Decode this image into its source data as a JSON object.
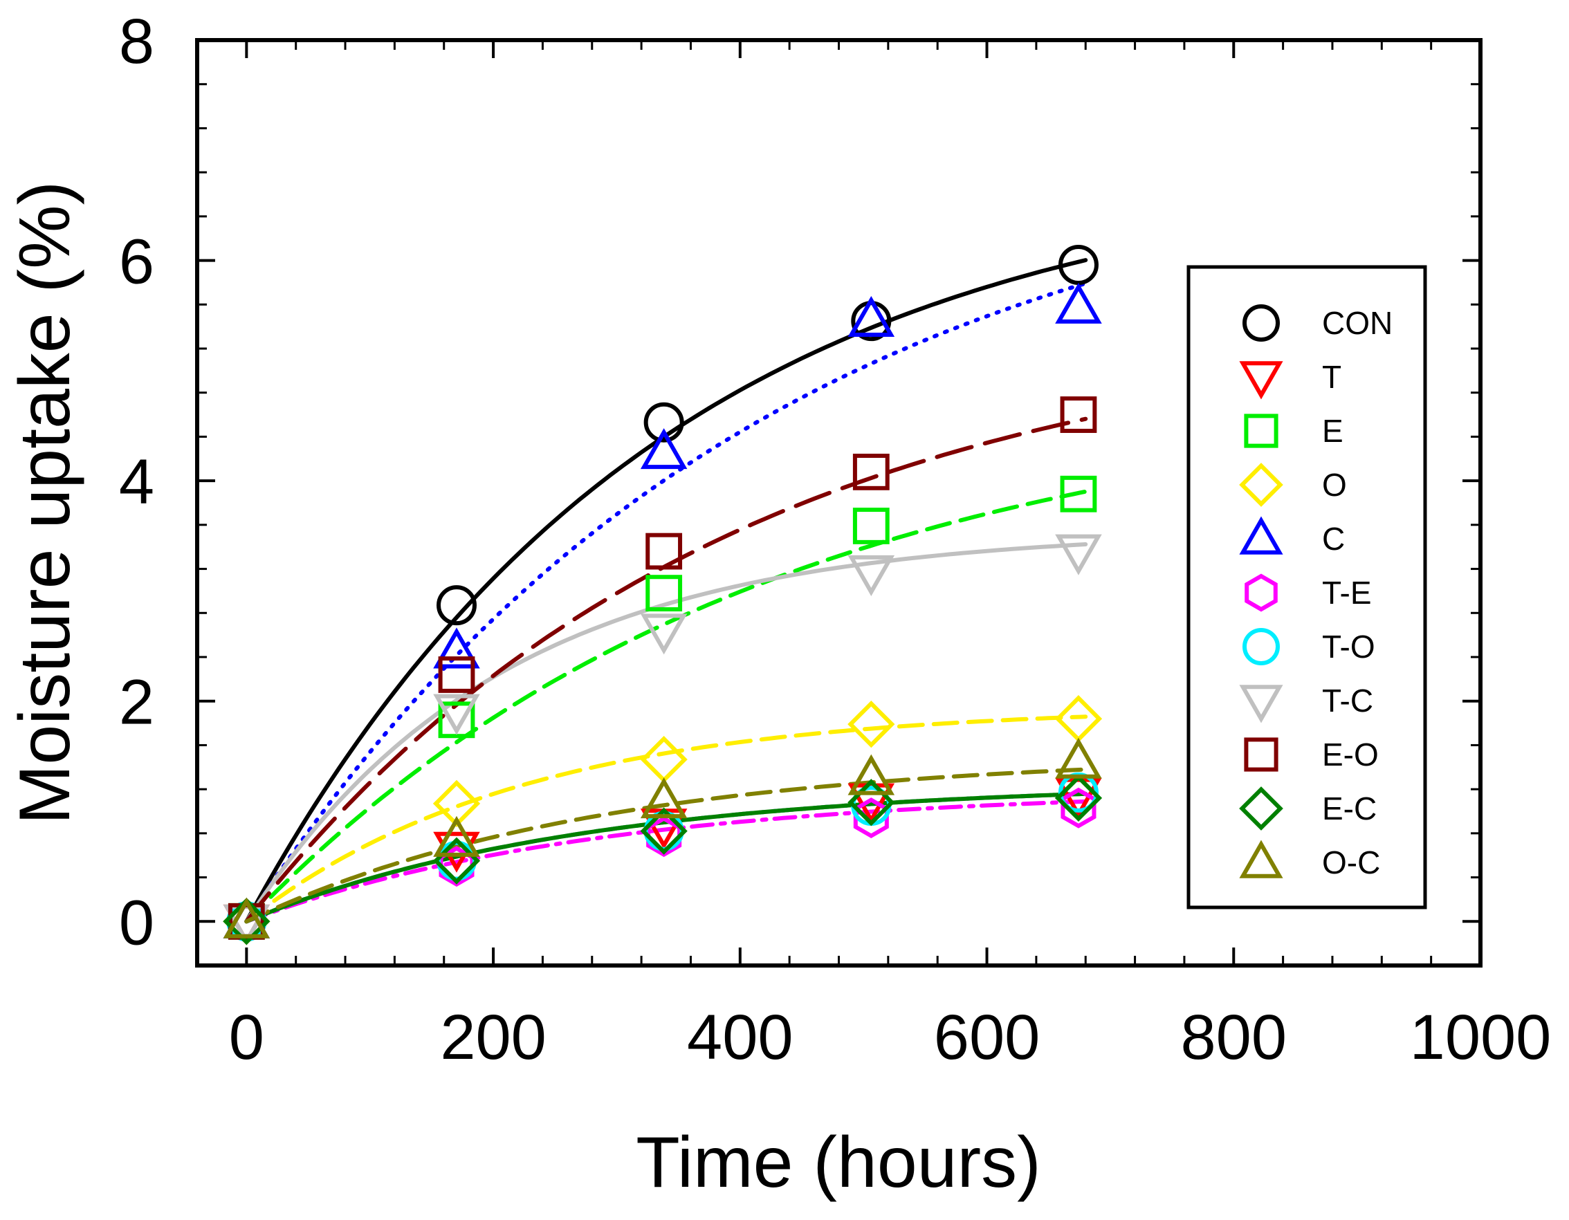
{
  "chart_data": {
    "type": "scatter",
    "title": "",
    "xlabel": "Time (hours)",
    "ylabel": "Moisture uptake (%)",
    "xlim": [
      -40,
      1000
    ],
    "ylim": [
      -0.4,
      8
    ],
    "xticks": [
      0,
      200,
      400,
      600,
      800,
      1000
    ],
    "yticks": [
      0,
      2,
      4,
      6,
      8
    ],
    "xtick_labels": [
      "0",
      "200",
      "400",
      "600",
      "800",
      "1000"
    ],
    "ytick_labels": [
      "0",
      "2",
      "4",
      "6",
      "8"
    ],
    "grid": false,
    "legend_position": "right",
    "series": [
      {
        "name": "CON",
        "marker": "circle",
        "color": "#000000",
        "line_style": "solid",
        "fit_final": 6.9,
        "fit_k": 0.003,
        "x": [
          0,
          168,
          336,
          504,
          672
        ],
        "y": [
          0,
          2.87,
          4.53,
          5.45,
          5.96
        ]
      },
      {
        "name": "T",
        "marker": "triangle-down",
        "color": "#ff0000",
        "line_style": "dashdot",
        "fit_final": 1.26,
        "fit_k": 0.0037,
        "x": [
          0,
          168,
          336,
          504,
          672
        ],
        "y": [
          0,
          0.66,
          0.87,
          1.1,
          1.15
        ]
      },
      {
        "name": "E",
        "marker": "square",
        "color": "#00ee00",
        "line_style": "dashed",
        "fit_final": 4.85,
        "fit_k": 0.0024,
        "x": [
          0,
          168,
          336,
          504,
          672
        ],
        "y": [
          0,
          1.83,
          2.98,
          3.59,
          3.88
        ]
      },
      {
        "name": "O",
        "marker": "diamond",
        "color": "#ffee00",
        "line_style": "dashed",
        "fit_final": 1.95,
        "fit_k": 0.0045,
        "x": [
          0,
          168,
          336,
          504,
          672
        ],
        "y": [
          0,
          1.07,
          1.47,
          1.79,
          1.84
        ]
      },
      {
        "name": "C",
        "marker": "triangle-up",
        "color": "#0000ff",
        "line_style": "dotted",
        "fit_final": 7.2,
        "fit_k": 0.0024,
        "x": [
          0,
          168,
          336,
          504,
          672
        ],
        "y": [
          0,
          2.45,
          4.26,
          5.46,
          5.58
        ]
      },
      {
        "name": "T-E",
        "marker": "hexagon",
        "color": "#ff00ff",
        "line_style": "dashdot",
        "fit_final": 1.2,
        "fit_k": 0.0035,
        "x": [
          0,
          168,
          336,
          504,
          672
        ],
        "y": [
          0,
          0.5,
          0.77,
          0.94,
          1.03
        ]
      },
      {
        "name": "T-O",
        "marker": "circle",
        "color": "#00eeff",
        "line_style": "dashdot",
        "fit_final": 1.26,
        "fit_k": 0.0037,
        "x": [
          0,
          168,
          336,
          504,
          672
        ],
        "y": [
          0,
          0.55,
          0.82,
          1.05,
          1.17
        ]
      },
      {
        "name": "T-C",
        "marker": "triangle-down",
        "color": "#c0c0c0",
        "line_style": "solid",
        "fit_final": 3.55,
        "fit_k": 0.0049,
        "x": [
          0,
          168,
          336,
          504,
          672
        ],
        "y": [
          0,
          1.91,
          2.64,
          3.17,
          3.36
        ]
      },
      {
        "name": "E-O",
        "marker": "square",
        "color": "#800000",
        "line_style": "longdash",
        "fit_final": 5.5,
        "fit_k": 0.0026,
        "x": [
          0,
          168,
          336,
          504,
          672
        ],
        "y": [
          0,
          2.24,
          3.36,
          4.08,
          4.6
        ]
      },
      {
        "name": "E-C",
        "marker": "diamond",
        "color": "#008000",
        "line_style": "solid",
        "fit_final": 1.26,
        "fit_k": 0.0037,
        "x": [
          0,
          168,
          336,
          504,
          672
        ],
        "y": [
          0,
          0.55,
          0.82,
          1.08,
          1.12
        ]
      },
      {
        "name": "O-C",
        "marker": "triangle-up",
        "color": "#808000",
        "line_style": "dashed",
        "fit_final": 1.52,
        "fit_k": 0.0035,
        "x": [
          0,
          168,
          336,
          504,
          672
        ],
        "y": [
          0,
          0.74,
          1.09,
          1.3,
          1.45
        ]
      }
    ]
  }
}
